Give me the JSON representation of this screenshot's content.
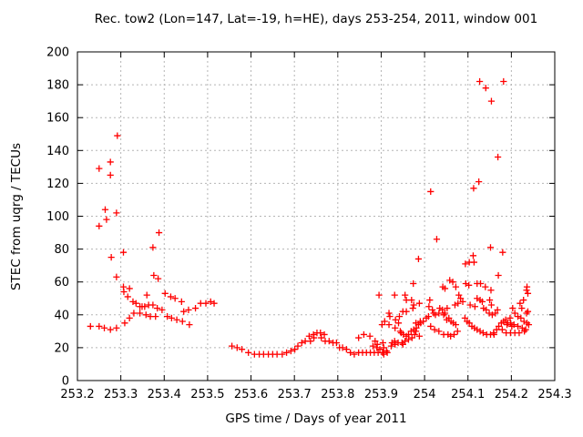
{
  "chart_data": {
    "type": "scatter",
    "title": "Rec. tow2 (Lon=147, Lat=-19, h=HE), days 253-254, 2011, window 001",
    "xlabel": "GPS time / Days of year 2011",
    "ylabel": "STEC from uqrg / TECUs",
    "xlim": [
      253.2,
      254.3
    ],
    "ylim": [
      0,
      200
    ],
    "xticks": [
      253.2,
      253.3,
      253.4,
      253.5,
      253.6,
      253.7,
      253.8,
      253.9,
      254.0,
      254.1,
      254.2,
      254.3
    ],
    "xtick_labels": [
      "253.2",
      "253.3",
      "253.4",
      "253.5",
      "253.6",
      "253.7",
      "253.8",
      "253.9",
      "254",
      "254.1",
      "254.2",
      "254.3"
    ],
    "yticks": [
      0,
      20,
      40,
      60,
      80,
      100,
      120,
      140,
      160,
      180,
      200
    ],
    "ytick_labels": [
      "0",
      "20",
      "40",
      "60",
      "80",
      "100",
      "120",
      "140",
      "160",
      "180",
      "200"
    ],
    "grid": "dotted",
    "legend": "none",
    "marker": "plus",
    "marker_color": "#ff0000",
    "grid_color": "#b5b5b5",
    "axis_color": "#000000",
    "background_color": "#ffffff",
    "series_name": "STEC",
    "points": [
      [
        253.23,
        33
      ],
      [
        253.25,
        33
      ],
      [
        253.262,
        32
      ],
      [
        253.276,
        31
      ],
      [
        253.29,
        32
      ],
      [
        253.309,
        35
      ],
      [
        253.32,
        38
      ],
      [
        253.33,
        41
      ],
      [
        253.344,
        41
      ],
      [
        253.358,
        40
      ],
      [
        253.368,
        39
      ],
      [
        253.38,
        39
      ],
      [
        253.407,
        39
      ],
      [
        253.417,
        38
      ],
      [
        253.429,
        37
      ],
      [
        253.442,
        36
      ],
      [
        253.458,
        34
      ],
      [
        253.328,
        48
      ],
      [
        253.335,
        47
      ],
      [
        253.344,
        45
      ],
      [
        253.349,
        45
      ],
      [
        253.355,
        45
      ],
      [
        253.364,
        46
      ],
      [
        253.374,
        46
      ],
      [
        253.384,
        44
      ],
      [
        253.395,
        43
      ],
      [
        253.402,
        53
      ],
      [
        253.415,
        51
      ],
      [
        253.425,
        50
      ],
      [
        253.44,
        48
      ],
      [
        253.445,
        42
      ],
      [
        253.456,
        43
      ],
      [
        253.472,
        44
      ],
      [
        253.484,
        47
      ],
      [
        253.496,
        47
      ],
      [
        253.507,
        48
      ],
      [
        253.515,
        47
      ],
      [
        253.29,
        63
      ],
      [
        253.306,
        57
      ],
      [
        253.307,
        54
      ],
      [
        253.32,
        56
      ],
      [
        253.316,
        51
      ],
      [
        253.36,
        52
      ],
      [
        253.376,
        64
      ],
      [
        253.386,
        62
      ],
      [
        253.278,
        75
      ],
      [
        253.306,
        78
      ],
      [
        253.374,
        81
      ],
      [
        253.388,
        90
      ],
      [
        253.25,
        94
      ],
      [
        253.267,
        98
      ],
      [
        253.264,
        104
      ],
      [
        253.29,
        102
      ],
      [
        253.276,
        125
      ],
      [
        253.25,
        129
      ],
      [
        253.276,
        133
      ],
      [
        253.292,
        149
      ],
      [
        253.556,
        21
      ],
      [
        253.568,
        20
      ],
      [
        253.579,
        19
      ],
      [
        253.594,
        17
      ],
      [
        253.608,
        16
      ],
      [
        253.619,
        16
      ],
      [
        253.629,
        16
      ],
      [
        253.64,
        16
      ],
      [
        253.65,
        16
      ],
      [
        253.66,
        16
      ],
      [
        253.672,
        16
      ],
      [
        253.682,
        17
      ],
      [
        253.692,
        18
      ],
      [
        253.701,
        19
      ],
      [
        253.708,
        21
      ],
      [
        253.717,
        23
      ],
      [
        253.725,
        24
      ],
      [
        253.734,
        27
      ],
      [
        253.737,
        24
      ],
      [
        253.744,
        28
      ],
      [
        253.745,
        26
      ],
      [
        253.752,
        29
      ],
      [
        253.76,
        29
      ],
      [
        253.762,
        26
      ],
      [
        253.769,
        28
      ],
      [
        253.771,
        24
      ],
      [
        253.78,
        24
      ],
      [
        253.789,
        23
      ],
      [
        253.797,
        23
      ],
      [
        253.804,
        20
      ],
      [
        253.811,
        20
      ],
      [
        253.82,
        19
      ],
      [
        253.829,
        17
      ],
      [
        253.838,
        16
      ],
      [
        253.848,
        17
      ],
      [
        253.857,
        17
      ],
      [
        253.866,
        17
      ],
      [
        253.875,
        17
      ],
      [
        253.884,
        17
      ],
      [
        253.893,
        17
      ],
      [
        253.903,
        17
      ],
      [
        253.912,
        18
      ],
      [
        253.848,
        26
      ],
      [
        253.86,
        28
      ],
      [
        253.874,
        27
      ],
      [
        253.886,
        24
      ],
      [
        253.891,
        22
      ],
      [
        253.881,
        21
      ],
      [
        253.89,
        20
      ],
      [
        253.897,
        19
      ],
      [
        253.906,
        20
      ],
      [
        253.904,
        23
      ],
      [
        253.906,
        16
      ],
      [
        253.914,
        17
      ],
      [
        253.923,
        21
      ],
      [
        253.925,
        23
      ],
      [
        253.931,
        24
      ],
      [
        253.932,
        22
      ],
      [
        253.939,
        23
      ],
      [
        253.948,
        23
      ],
      [
        253.955,
        24
      ],
      [
        253.963,
        25
      ],
      [
        253.971,
        26
      ],
      [
        253.958,
        27
      ],
      [
        253.963,
        28
      ],
      [
        253.951,
        28
      ],
      [
        253.946,
        29
      ],
      [
        253.944,
        30
      ],
      [
        253.932,
        32
      ],
      [
        253.969,
        30
      ],
      [
        253.975,
        31
      ],
      [
        253.977,
        28
      ],
      [
        253.988,
        27
      ],
      [
        253.981,
        32
      ],
      [
        253.986,
        34
      ],
      [
        253.991,
        35
      ],
      [
        253.997,
        36
      ],
      [
        254.004,
        38
      ],
      [
        254.009,
        39
      ],
      [
        254.014,
        33
      ],
      [
        253.95,
        22
      ],
      [
        253.98,
        30
      ],
      [
        253.902,
        34
      ],
      [
        253.908,
        36
      ],
      [
        253.918,
        34
      ],
      [
        253.92,
        39
      ],
      [
        253.918,
        41
      ],
      [
        253.933,
        37
      ],
      [
        253.94,
        35
      ],
      [
        253.942,
        39
      ],
      [
        253.95,
        42
      ],
      [
        253.958,
        42
      ],
      [
        253.973,
        44
      ],
      [
        253.975,
        46
      ],
      [
        253.988,
        47
      ],
      [
        253.958,
        49
      ],
      [
        253.97,
        49
      ],
      [
        253.955,
        52
      ],
      [
        253.895,
        52
      ],
      [
        253.931,
        52
      ],
      [
        253.974,
        59
      ],
      [
        253.986,
        74
      ],
      [
        253.98,
        35
      ],
      [
        253.99,
        36
      ],
      [
        254.012,
        49
      ],
      [
        254.01,
        45
      ],
      [
        254.018,
        43
      ],
      [
        254.021,
        41
      ],
      [
        254.025,
        40
      ],
      [
        254.033,
        41
      ],
      [
        254.035,
        44
      ],
      [
        254.041,
        43
      ],
      [
        254.044,
        40
      ],
      [
        254.047,
        41
      ],
      [
        254.052,
        44
      ],
      [
        254.051,
        37
      ],
      [
        254.056,
        38
      ],
      [
        254.061,
        36
      ],
      [
        254.066,
        35
      ],
      [
        254.072,
        34
      ],
      [
        254.023,
        31
      ],
      [
        254.033,
        30
      ],
      [
        254.044,
        28
      ],
      [
        254.054,
        28
      ],
      [
        254.06,
        27
      ],
      [
        254.068,
        28
      ],
      [
        254.076,
        30
      ],
      [
        254.079,
        52
      ],
      [
        254.083,
        50
      ],
      [
        254.088,
        48
      ],
      [
        254.077,
        47
      ],
      [
        254.07,
        46
      ],
      [
        254.121,
        50
      ],
      [
        254.128,
        49
      ],
      [
        254.133,
        48
      ],
      [
        254.15,
        49
      ],
      [
        254.154,
        46
      ],
      [
        254.105,
        46
      ],
      [
        254.116,
        45
      ],
      [
        254.136,
        44
      ],
      [
        254.142,
        43
      ],
      [
        254.149,
        41
      ],
      [
        254.156,
        40
      ],
      [
        254.163,
        41
      ],
      [
        254.168,
        43
      ],
      [
        254.093,
        38
      ],
      [
        254.098,
        36
      ],
      [
        254.103,
        35
      ],
      [
        254.109,
        33
      ],
      [
        254.115,
        32
      ],
      [
        254.121,
        31
      ],
      [
        254.128,
        30
      ],
      [
        254.135,
        29
      ],
      [
        254.143,
        28
      ],
      [
        254.152,
        28
      ],
      [
        254.159,
        29
      ],
      [
        254.166,
        31
      ],
      [
        254.171,
        33
      ],
      [
        254.177,
        35
      ],
      [
        254.182,
        36
      ],
      [
        254.187,
        37
      ],
      [
        254.192,
        35
      ],
      [
        254.197,
        38
      ],
      [
        254.203,
        44
      ],
      [
        254.208,
        41
      ],
      [
        254.215,
        39
      ],
      [
        254.222,
        38
      ],
      [
        254.229,
        36
      ],
      [
        254.236,
        35
      ],
      [
        254.206,
        34
      ],
      [
        254.215,
        33
      ],
      [
        254.225,
        32
      ],
      [
        254.233,
        31
      ],
      [
        254.19,
        34
      ],
      [
        254.198,
        35
      ],
      [
        254.201,
        33
      ],
      [
        254.24,
        34
      ],
      [
        254.179,
        31
      ],
      [
        254.188,
        29
      ],
      [
        254.198,
        29
      ],
      [
        254.208,
        29
      ],
      [
        254.218,
        29
      ],
      [
        254.16,
        28
      ],
      [
        254.22,
        47
      ],
      [
        254.224,
        44
      ],
      [
        254.235,
        41
      ],
      [
        254.23,
        30
      ],
      [
        254.238,
        42
      ],
      [
        254.228,
        49
      ],
      [
        254.042,
        57
      ],
      [
        254.047,
        56
      ],
      [
        254.058,
        61
      ],
      [
        254.065,
        60
      ],
      [
        254.072,
        57
      ],
      [
        254.095,
        59
      ],
      [
        254.102,
        58
      ],
      [
        254.121,
        59
      ],
      [
        254.129,
        59
      ],
      [
        254.14,
        57
      ],
      [
        254.153,
        55
      ],
      [
        254.236,
        57
      ],
      [
        254.235,
        55
      ],
      [
        254.238,
        53
      ],
      [
        254.028,
        86
      ],
      [
        254.094,
        71
      ],
      [
        254.103,
        72
      ],
      [
        254.114,
        72
      ],
      [
        254.112,
        76
      ],
      [
        254.152,
        81
      ],
      [
        254.17,
        64
      ],
      [
        254.18,
        78
      ],
      [
        254.014,
        115
      ],
      [
        254.113,
        117
      ],
      [
        254.125,
        121
      ],
      [
        254.169,
        136
      ],
      [
        254.154,
        170
      ],
      [
        254.127,
        182
      ],
      [
        254.141,
        178
      ],
      [
        254.182,
        182
      ]
    ]
  }
}
